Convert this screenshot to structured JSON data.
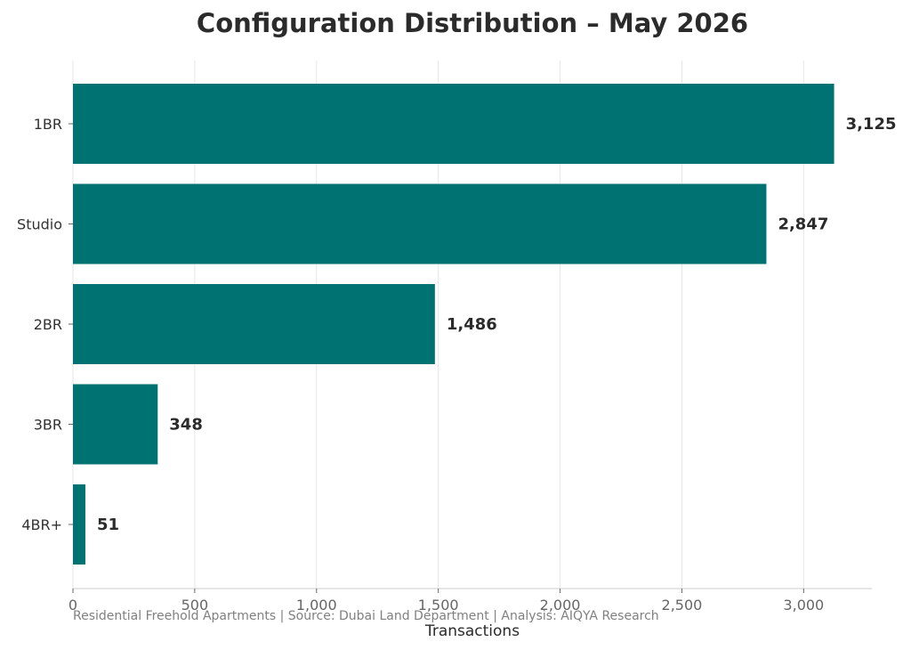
{
  "chart_data": {
    "type": "bar",
    "orientation": "horizontal",
    "title": "Configuration Distribution – May 2026",
    "xlabel": "Transactions",
    "ylabel": "",
    "categories": [
      "1BR",
      "Studio",
      "2BR",
      "3BR",
      "4BR+"
    ],
    "values": [
      3125,
      2847,
      1486,
      348,
      51
    ],
    "value_labels": [
      "3,125",
      "2,847",
      "1,486",
      "348",
      "51"
    ],
    "xlim": [
      0,
      3280
    ],
    "x_ticks": [
      0,
      500,
      1000,
      1500,
      2000,
      2500,
      3000
    ],
    "x_tick_labels": [
      "0",
      "500",
      "1,000",
      "1,500",
      "2,000",
      "2,500",
      "3,000"
    ],
    "grid": "vertical",
    "colors": {
      "bar": "#007272",
      "grid": "#e6e6e6",
      "axis": "#cccccc"
    },
    "footnote": "Residential Freehold Apartments | Source: Dubai Land Department | Analysis: AIQYA Research"
  }
}
